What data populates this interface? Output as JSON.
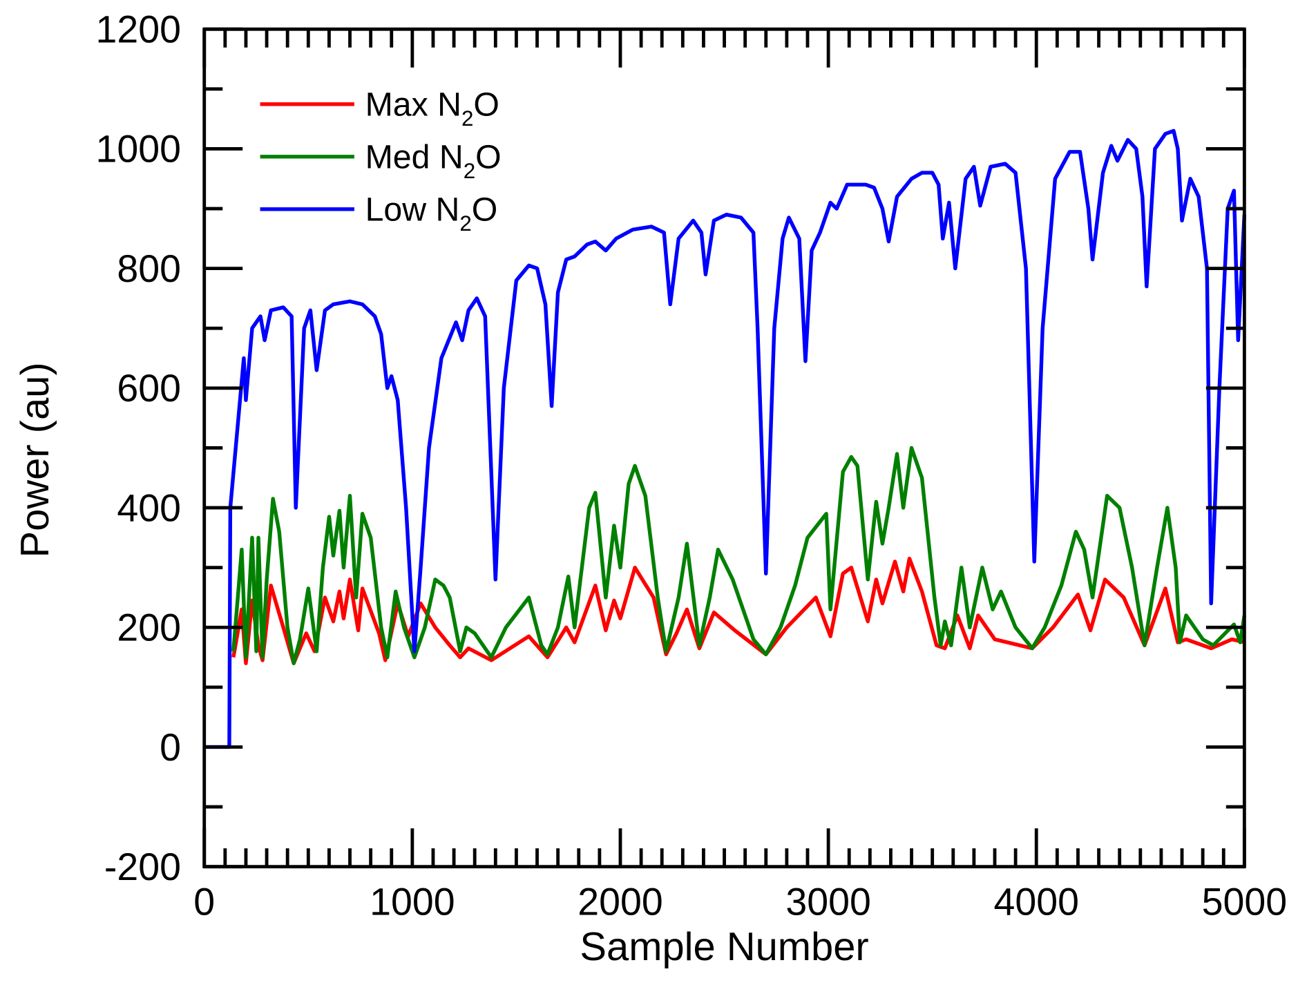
{
  "chart_data": {
    "type": "line",
    "title": "",
    "xlabel": "Sample Number",
    "ylabel": "Power (au)",
    "xlim": [
      0,
      5000
    ],
    "ylim": [
      -200,
      1200
    ],
    "xticks": [
      0,
      1000,
      2000,
      3000,
      4000,
      5000
    ],
    "yticks": [
      -200,
      0,
      200,
      400,
      600,
      800,
      1000,
      1200
    ],
    "xtick_labels": [
      "0",
      "1000",
      "2000",
      "3000",
      "4000",
      "5000"
    ],
    "ytick_labels": [
      "-200",
      "0",
      "200",
      "400",
      "600",
      "800",
      "1000",
      "1200"
    ],
    "grid": false,
    "legend_position": "top-left",
    "series": [
      {
        "name": "Max N2O",
        "label_main": "Max N",
        "label_sub": "2",
        "label_end": "O",
        "color": "#ff0000",
        "x": [
          0,
          120,
          140,
          180,
          200,
          230,
          260,
          280,
          320,
          380,
          430,
          490,
          530,
          580,
          620,
          650,
          670,
          700,
          740,
          760,
          840,
          870,
          930,
          980,
          1040,
          1110,
          1180,
          1230,
          1270,
          1380,
          1560,
          1650,
          1740,
          1780,
          1880,
          1930,
          1970,
          2000,
          2070,
          2160,
          2220,
          2270,
          2320,
          2380,
          2450,
          2550,
          2700,
          2800,
          2940,
          3010,
          3070,
          3110,
          3190,
          3230,
          3260,
          3320,
          3360,
          3390,
          3450,
          3520,
          3560,
          3620,
          3680,
          3720,
          3800,
          3980,
          4080,
          4200,
          4260,
          4330,
          4420,
          4520,
          4620,
          4680,
          4720,
          4840,
          4940,
          5000
        ],
        "y": [
          null,
          null,
          150,
          230,
          140,
          245,
          170,
          145,
          270,
          200,
          140,
          190,
          160,
          250,
          210,
          260,
          215,
          280,
          195,
          265,
          190,
          145,
          240,
          185,
          240,
          200,
          170,
          150,
          165,
          145,
          185,
          150,
          200,
          175,
          270,
          195,
          245,
          215,
          300,
          250,
          155,
          190,
          230,
          165,
          225,
          195,
          155,
          200,
          250,
          185,
          290,
          300,
          210,
          280,
          240,
          310,
          260,
          315,
          260,
          170,
          165,
          220,
          165,
          220,
          180,
          165,
          200,
          255,
          195,
          280,
          250,
          170,
          265,
          175,
          180,
          165,
          180,
          175
        ]
      },
      {
        "name": "Med N2O",
        "label_main": "Med N",
        "label_sub": "2",
        "label_end": "O",
        "color": "#008000",
        "x": [
          0,
          120,
          140,
          180,
          200,
          230,
          250,
          260,
          280,
          300,
          330,
          360,
          400,
          430,
          460,
          500,
          540,
          570,
          600,
          620,
          650,
          670,
          700,
          730,
          760,
          800,
          850,
          880,
          920,
          960,
          1010,
          1060,
          1110,
          1150,
          1180,
          1230,
          1260,
          1300,
          1380,
          1450,
          1560,
          1620,
          1650,
          1700,
          1750,
          1780,
          1850,
          1880,
          1930,
          1970,
          2000,
          2040,
          2070,
          2120,
          2180,
          2220,
          2280,
          2320,
          2380,
          2430,
          2470,
          2540,
          2640,
          2700,
          2770,
          2840,
          2900,
          2990,
          3010,
          3070,
          3110,
          3140,
          3190,
          3230,
          3260,
          3290,
          3330,
          3360,
          3400,
          3450,
          3510,
          3540,
          3560,
          3590,
          3640,
          3680,
          3740,
          3790,
          3830,
          3900,
          3980,
          4040,
          4120,
          4190,
          4230,
          4270,
          4340,
          4400,
          4460,
          4520,
          4580,
          4630,
          4670,
          4690,
          4720,
          4800,
          4850,
          4950,
          4980,
          5000
        ],
        "y": [
          null,
          null,
          160,
          330,
          150,
          350,
          160,
          350,
          150,
          280,
          415,
          360,
          200,
          140,
          180,
          265,
          160,
          300,
          385,
          320,
          395,
          300,
          420,
          250,
          390,
          350,
          200,
          150,
          260,
          200,
          150,
          200,
          280,
          270,
          250,
          160,
          200,
          190,
          150,
          200,
          250,
          170,
          155,
          200,
          285,
          200,
          400,
          425,
          250,
          370,
          300,
          440,
          470,
          420,
          250,
          160,
          250,
          340,
          170,
          250,
          330,
          280,
          180,
          155,
          200,
          270,
          350,
          390,
          230,
          460,
          485,
          470,
          280,
          410,
          340,
          400,
          490,
          400,
          500,
          450,
          250,
          170,
          210,
          170,
          300,
          200,
          300,
          230,
          260,
          200,
          165,
          200,
          270,
          360,
          330,
          250,
          420,
          400,
          300,
          170,
          300,
          400,
          300,
          175,
          220,
          180,
          170,
          205,
          175,
          220
        ]
      },
      {
        "name": "Low N2O",
        "label_main": "Low N",
        "label_sub": "2",
        "label_end": "O",
        "color": "#0000ff",
        "x": [
          0,
          120,
          125,
          190,
          200,
          230,
          270,
          290,
          320,
          380,
          420,
          440,
          480,
          510,
          540,
          580,
          620,
          700,
          760,
          820,
          850,
          880,
          900,
          930,
          970,
          1010,
          1040,
          1080,
          1140,
          1210,
          1240,
          1270,
          1310,
          1350,
          1400,
          1440,
          1500,
          1560,
          1600,
          1640,
          1670,
          1700,
          1740,
          1780,
          1840,
          1880,
          1930,
          1980,
          2060,
          2150,
          2210,
          2240,
          2280,
          2350,
          2390,
          2410,
          2450,
          2510,
          2580,
          2640,
          2660,
          2700,
          2740,
          2780,
          2810,
          2860,
          2890,
          2920,
          2960,
          3010,
          3040,
          3090,
          3180,
          3220,
          3260,
          3290,
          3330,
          3400,
          3450,
          3500,
          3530,
          3550,
          3580,
          3610,
          3660,
          3700,
          3730,
          3780,
          3850,
          3900,
          3950,
          3990,
          4030,
          4090,
          4160,
          4210,
          4250,
          4270,
          4320,
          4360,
          4390,
          4440,
          4480,
          4510,
          4530,
          4570,
          4620,
          4660,
          4680,
          4700,
          4740,
          4780,
          4820,
          4840,
          4880,
          4920,
          4950,
          4970,
          5000
        ],
        "y": [
          0,
          0,
          400,
          650,
          580,
          700,
          720,
          680,
          730,
          735,
          720,
          400,
          700,
          730,
          630,
          730,
          740,
          745,
          740,
          720,
          690,
          600,
          620,
          580,
          400,
          160,
          300,
          500,
          650,
          710,
          680,
          730,
          750,
          720,
          280,
          600,
          780,
          805,
          800,
          740,
          570,
          760,
          815,
          820,
          840,
          845,
          830,
          850,
          865,
          870,
          860,
          740,
          850,
          880,
          860,
          790,
          880,
          890,
          885,
          860,
          700,
          290,
          700,
          850,
          885,
          850,
          645,
          830,
          860,
          910,
          900,
          940,
          940,
          935,
          900,
          845,
          920,
          950,
          960,
          960,
          940,
          850,
          910,
          800,
          950,
          970,
          905,
          970,
          975,
          960,
          800,
          310,
          700,
          950,
          995,
          995,
          900,
          815,
          960,
          1005,
          980,
          1015,
          1000,
          920,
          770,
          1000,
          1025,
          1030,
          1000,
          880,
          950,
          920,
          800,
          240,
          600,
          900,
          930,
          680,
          890
        ]
      }
    ]
  }
}
